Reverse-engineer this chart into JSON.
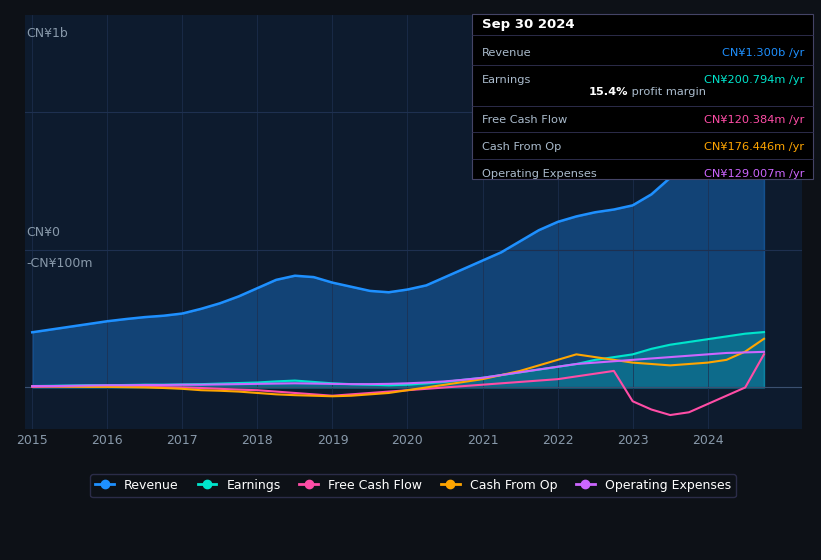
{
  "background_color": "#0d1117",
  "plot_bg_color": "#0d1b2e",
  "ylabel_top": "CN¥1b",
  "ylabel_zero": "CN¥0",
  "ylabel_neg": "-CN¥100m",
  "years": [
    2015,
    2015.25,
    2015.5,
    2015.75,
    2016,
    2016.25,
    2016.5,
    2016.75,
    2017,
    2017.25,
    2017.5,
    2017.75,
    2018,
    2018.25,
    2018.5,
    2018.75,
    2019,
    2019.25,
    2019.5,
    2019.75,
    2020,
    2020.25,
    2020.5,
    2020.75,
    2021,
    2021.25,
    2021.5,
    2021.75,
    2022,
    2022.25,
    2022.5,
    2022.75,
    2023,
    2023.25,
    2023.5,
    2023.75,
    2024,
    2024.25,
    2024.5,
    2024.75
  ],
  "revenue": [
    200,
    210,
    220,
    230,
    240,
    248,
    255,
    260,
    268,
    285,
    305,
    330,
    360,
    390,
    405,
    400,
    380,
    365,
    350,
    345,
    355,
    370,
    400,
    430,
    460,
    490,
    530,
    570,
    600,
    620,
    635,
    645,
    660,
    700,
    760,
    840,
    930,
    1050,
    1200,
    1300
  ],
  "earnings": [
    5,
    6,
    7,
    8,
    8,
    9,
    10,
    10,
    11,
    12,
    14,
    16,
    18,
    22,
    25,
    20,
    15,
    12,
    10,
    8,
    10,
    15,
    20,
    28,
    35,
    45,
    55,
    65,
    75,
    85,
    100,
    110,
    120,
    140,
    155,
    165,
    175,
    185,
    195,
    200.794
  ],
  "free_cash_flow": [
    2,
    3,
    3,
    4,
    4,
    3,
    2,
    1,
    0,
    -2,
    -5,
    -8,
    -10,
    -15,
    -20,
    -25,
    -30,
    -25,
    -20,
    -15,
    -10,
    -5,
    0,
    5,
    10,
    15,
    20,
    25,
    30,
    40,
    50,
    60,
    -50,
    -80,
    -100,
    -90,
    -60,
    -30,
    0,
    120.384
  ],
  "cash_from_op": [
    5,
    4,
    3,
    2,
    2,
    1,
    0,
    -2,
    -5,
    -10,
    -12,
    -15,
    -20,
    -25,
    -28,
    -30,
    -32,
    -30,
    -25,
    -20,
    -10,
    0,
    10,
    20,
    30,
    45,
    60,
    80,
    100,
    120,
    110,
    100,
    90,
    85,
    80,
    85,
    90,
    100,
    130,
    176.446
  ],
  "operating_expenses": [
    5,
    5,
    6,
    7,
    8,
    8,
    9,
    9,
    10,
    10,
    11,
    12,
    13,
    14,
    15,
    14,
    13,
    12,
    12,
    13,
    15,
    18,
    22,
    28,
    35,
    45,
    55,
    65,
    75,
    85,
    90,
    95,
    100,
    105,
    110,
    115,
    120,
    125,
    127,
    129.007
  ],
  "revenue_color": "#1e90ff",
  "earnings_color": "#00e5cc",
  "fcf_color": "#ff4da6",
  "cashop_color": "#ffa500",
  "opex_color": "#cc66ff",
  "revenue_fill_alpha": 0.35,
  "earnings_fill_alpha": 0.25,
  "x_ticks": [
    2015,
    2016,
    2017,
    2018,
    2019,
    2020,
    2021,
    2022,
    2023,
    2024
  ],
  "grid_color": "#1e3050",
  "ylim_min": -150,
  "ylim_max": 1350,
  "tooltip": {
    "date": "Sep 30 2024",
    "revenue_label": "Revenue",
    "revenue_value": "CN¥1.300b /yr",
    "earnings_label": "Earnings",
    "earnings_value": "CN¥200.794m /yr",
    "margin_value": "15.4%",
    "margin_text": " profit margin",
    "fcf_label": "Free Cash Flow",
    "fcf_value": "CN¥120.384m /yr",
    "cashop_label": "Cash From Op",
    "cashop_value": "CN¥176.446m /yr",
    "opex_label": "Operating Expenses",
    "opex_value": "CN¥129.007m /yr"
  },
  "legend_items": [
    {
      "label": "Revenue",
      "color": "#1e90ff"
    },
    {
      "label": "Earnings",
      "color": "#00e5cc"
    },
    {
      "label": "Free Cash Flow",
      "color": "#ff4da6"
    },
    {
      "label": "Cash From Op",
      "color": "#ffa500"
    },
    {
      "label": "Operating Expenses",
      "color": "#cc66ff"
    }
  ]
}
